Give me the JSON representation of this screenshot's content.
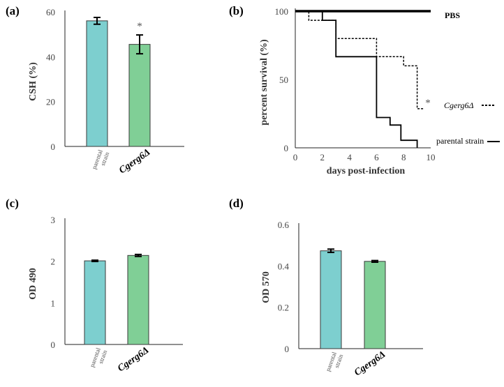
{
  "colors": {
    "parental": "#7dcfcf",
    "mutant": "#80cf96",
    "axis": "#222222"
  },
  "chart_data": [
    {
      "panel": "(a)",
      "type": "bar",
      "ylabel": "CSH (%)",
      "ylim": [
        0,
        60
      ],
      "yticks": [
        0,
        20,
        40,
        60
      ],
      "categories": [
        "parental strain",
        "Cgerg6Δ"
      ],
      "category_lines": [
        [
          "parental",
          "strain"
        ],
        [
          "Cgerg6Δ"
        ]
      ],
      "values": [
        56,
        45.5
      ],
      "errors": [
        1.5,
        4.2
      ],
      "annotations": [
        "",
        "*"
      ]
    },
    {
      "panel": "(b)",
      "type": "line",
      "xlabel": "days post-infection",
      "ylabel": "percent survival (%)",
      "xlim": [
        0,
        10
      ],
      "ylim": [
        0,
        100
      ],
      "xticks": [
        0,
        2,
        4,
        6,
        8,
        10
      ],
      "yticks": [
        0,
        50,
        100
      ],
      "series": [
        {
          "name": "PBS",
          "style": "solid-thick",
          "x": [
            0,
            10
          ],
          "y": [
            100,
            100
          ]
        },
        {
          "name": "Cgerg6Δ",
          "style": "dashed",
          "annotation": "*",
          "x": [
            0,
            1,
            1,
            2,
            2,
            3,
            3,
            6,
            6,
            7.5,
            7.5,
            8,
            8,
            9,
            9,
            9.5
          ],
          "y": [
            100,
            100,
            93.3,
            93.3,
            93.3,
            93.3,
            80,
            80,
            66.7,
            66.7,
            66.7,
            66.7,
            60,
            60,
            28.6,
            28.6
          ]
        },
        {
          "name": "parental strain",
          "style": "solid",
          "x": [
            0,
            2,
            2,
            3,
            3,
            6,
            6,
            7,
            7,
            7.8,
            7.8,
            8.2,
            8.2,
            9,
            9
          ],
          "y": [
            100,
            100,
            93.3,
            93.3,
            66.7,
            66.7,
            22.2,
            22.2,
            16.7,
            16.7,
            5.5,
            5.5,
            5.5,
            5.5,
            0
          ]
        }
      ]
    },
    {
      "panel": "(c)",
      "type": "bar",
      "ylabel": "OD 490",
      "ylim": [
        0,
        3
      ],
      "yticks": [
        0,
        1,
        2,
        3
      ],
      "categories": [
        "parental strain",
        "Cgerg6Δ"
      ],
      "category_lines": [
        [
          "parental",
          "strain"
        ],
        [
          "Cgerg6Δ"
        ]
      ],
      "values": [
        2.01,
        2.14
      ],
      "errors": [
        0.015,
        0.025
      ],
      "annotations": [
        "",
        ""
      ]
    },
    {
      "panel": "(d)",
      "type": "bar",
      "ylabel": "OD 570",
      "ylim": [
        0,
        0.6
      ],
      "yticks": [
        0,
        0.2,
        0.4,
        0.6
      ],
      "categories": [
        "parental strain",
        "Cgerg6Δ"
      ],
      "category_lines": [
        [
          "parental",
          "strain"
        ],
        [
          "Cgerg6Δ"
        ]
      ],
      "values": [
        0.473,
        0.422
      ],
      "errors": [
        0.008,
        0.004
      ],
      "annotations": [
        "",
        ""
      ]
    }
  ]
}
